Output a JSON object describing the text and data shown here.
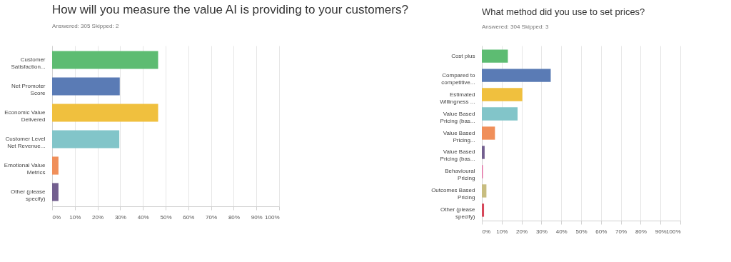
{
  "chart_data": [
    {
      "type": "bar",
      "orientation": "horizontal",
      "title": "How will you measure the value AI is providing to your customers?",
      "subtitle": "Answered: 305    Skipped: 2",
      "categories": [
        "Customer Satisfaction...",
        "Net Promoter Score",
        "Economic Value Delivered",
        "Customer Level Net Revenue...",
        "Emotional Value Metrics",
        "Other (please specify)"
      ],
      "values": [
        46.7,
        29.8,
        46.7,
        29.6,
        2.8,
        2.8
      ],
      "colors": [
        "#5dbc72",
        "#5a7bb5",
        "#f0c03e",
        "#82c5c9",
        "#f08f5a",
        "#735f8f"
      ],
      "xlim": [
        0,
        100
      ],
      "xticks": [
        {
          "value": 0,
          "label": "0%"
        },
        {
          "value": 10,
          "label": "10%"
        },
        {
          "value": 20,
          "label": "20%"
        },
        {
          "value": 30,
          "label": "30%"
        },
        {
          "value": 40,
          "label": "40%"
        },
        {
          "value": 50,
          "label": "50%"
        },
        {
          "value": 60,
          "label": "60%"
        },
        {
          "value": 70,
          "label": "70%"
        },
        {
          "value": 80,
          "label": "80%"
        },
        {
          "value": 90,
          "label": "90%"
        },
        {
          "value": 100,
          "label": "100%"
        }
      ],
      "grid": "x"
    },
    {
      "type": "bar",
      "orientation": "horizontal",
      "title": "What method did you use to set prices?",
      "subtitle": "Answered: 304    Skipped: 3",
      "categories": [
        "Cost plus",
        "Compared to competitive...",
        "Estimated Willingness ...",
        "Value Based Pricing (bas...",
        "Value Based Pricing...",
        "Value Based Pricing (bas...",
        "Behavioural Pricing",
        "Outcomes Based Pricing",
        "Other (please specify)"
      ],
      "values": [
        13.1,
        34.7,
        20.4,
        18.0,
        6.6,
        1.4,
        0.5,
        2.3,
        1.1
      ],
      "colors": [
        "#5dbc72",
        "#5a7bb5",
        "#f0c03e",
        "#82c5c9",
        "#f08f5a",
        "#735f8f",
        "#e06aa0",
        "#c8bd80",
        "#d6475a"
      ],
      "xlim": [
        0,
        100
      ],
      "xticks": [
        {
          "value": 0,
          "label": "0%"
        },
        {
          "value": 10,
          "label": "10%"
        },
        {
          "value": 20,
          "label": "20%"
        },
        {
          "value": 30,
          "label": "30%"
        },
        {
          "value": 40,
          "label": "40%"
        },
        {
          "value": 50,
          "label": "50%"
        },
        {
          "value": 60,
          "label": "60%"
        },
        {
          "value": 70,
          "label": "70%"
        },
        {
          "value": 80,
          "label": "80%"
        },
        {
          "value": 90,
          "label": "90%"
        },
        {
          "value": 100,
          "label": "100%"
        }
      ],
      "grid": "x"
    }
  ]
}
